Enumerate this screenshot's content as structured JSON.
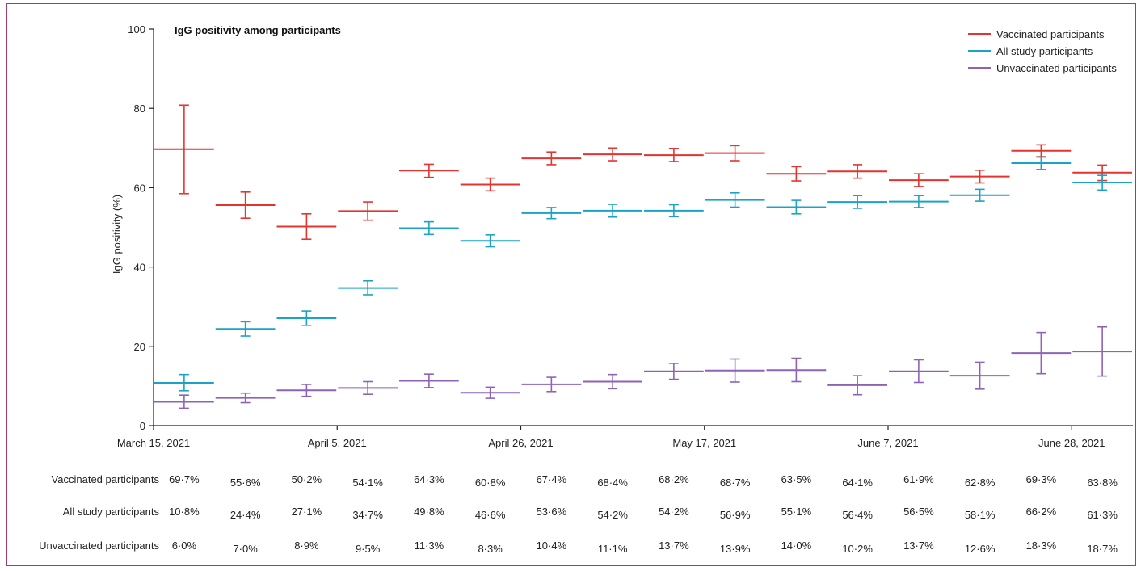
{
  "chart_data": {
    "type": "line",
    "title": "IgG positivity among participants",
    "ylabel": "IgG positivity (%)",
    "xlabel": "",
    "ylim": [
      0,
      100
    ],
    "yticks": [
      0,
      20,
      40,
      60,
      80,
      100
    ],
    "x_tick_labels": [
      "March 15, 2021",
      "April 5, 2021",
      "April 26, 2021",
      "May 17, 2021",
      "June 7, 2021",
      "June 28, 2021"
    ],
    "x_tick_period_index": [
      0,
      3,
      6,
      9,
      12,
      15
    ],
    "legend_position": "top-right",
    "series": [
      {
        "name": "Vaccinated participants",
        "color": "#e3342f",
        "values": [
          69.7,
          55.6,
          50.2,
          54.1,
          64.3,
          60.8,
          67.4,
          68.4,
          68.2,
          68.7,
          63.5,
          64.1,
          61.9,
          62.8,
          69.3,
          63.8
        ],
        "lower": [
          58.5,
          52.3,
          47.0,
          51.8,
          62.6,
          59.2,
          65.8,
          66.8,
          66.6,
          66.8,
          61.7,
          62.4,
          60.3,
          61.2,
          67.8,
          61.8
        ],
        "upper": [
          80.8,
          58.9,
          53.4,
          56.4,
          65.9,
          62.4,
          69.0,
          70.0,
          69.9,
          70.6,
          65.3,
          65.8,
          63.5,
          64.4,
          70.8,
          65.7
        ],
        "labels": [
          "69·7%",
          "55·6%",
          "50·2%",
          "54·1%",
          "64·3%",
          "60·8%",
          "67·4%",
          "68·4%",
          "68·2%",
          "68·7%",
          "63·5%",
          "64·1%",
          "61·9%",
          "62·8%",
          "69·3%",
          "63·8%"
        ]
      },
      {
        "name": "All study participants",
        "color": "#1ba3c6",
        "values": [
          10.8,
          24.4,
          27.1,
          34.7,
          49.8,
          46.6,
          53.6,
          54.2,
          54.2,
          56.9,
          55.1,
          56.4,
          56.5,
          58.1,
          66.2,
          61.3
        ],
        "lower": [
          8.8,
          22.6,
          25.3,
          33.0,
          48.2,
          45.1,
          52.2,
          52.6,
          52.7,
          55.1,
          53.4,
          54.8,
          55.0,
          56.6,
          64.6,
          59.4
        ],
        "upper": [
          12.9,
          26.2,
          28.9,
          36.5,
          51.4,
          48.1,
          55.0,
          55.8,
          55.7,
          58.7,
          56.8,
          58.0,
          58.0,
          59.6,
          67.7,
          63.1
        ],
        "labels": [
          "10·8%",
          "24·4%",
          "27·1%",
          "34·7%",
          "49·8%",
          "46·6%",
          "53·6%",
          "54·2%",
          "54·2%",
          "56·9%",
          "55·1%",
          "56·4%",
          "56·5%",
          "58·1%",
          "66·2%",
          "61·3%"
        ]
      },
      {
        "name": "Unvaccinated participants",
        "color": "#8e63b5",
        "values": [
          6.0,
          7.0,
          8.9,
          9.5,
          11.3,
          8.3,
          10.4,
          11.1,
          13.7,
          13.9,
          14.0,
          10.2,
          13.7,
          12.6,
          18.3,
          18.7
        ],
        "lower": [
          4.4,
          5.8,
          7.4,
          7.9,
          9.6,
          6.9,
          8.6,
          9.3,
          11.7,
          11.0,
          11.1,
          7.8,
          10.9,
          9.2,
          13.1,
          12.5
        ],
        "upper": [
          7.7,
          8.2,
          10.4,
          11.1,
          13.0,
          9.7,
          12.2,
          12.9,
          15.7,
          16.8,
          17.0,
          12.6,
          16.6,
          16.0,
          23.5,
          24.9
        ],
        "labels": [
          "6·0%",
          "7·0%",
          "8·9%",
          "9·5%",
          "11·3%",
          "8·3%",
          "10·4%",
          "11·1%",
          "13·7%",
          "13·9%",
          "14·0%",
          "10·2%",
          "13·7%",
          "12·6%",
          "18·3%",
          "18·7%"
        ]
      }
    ]
  }
}
